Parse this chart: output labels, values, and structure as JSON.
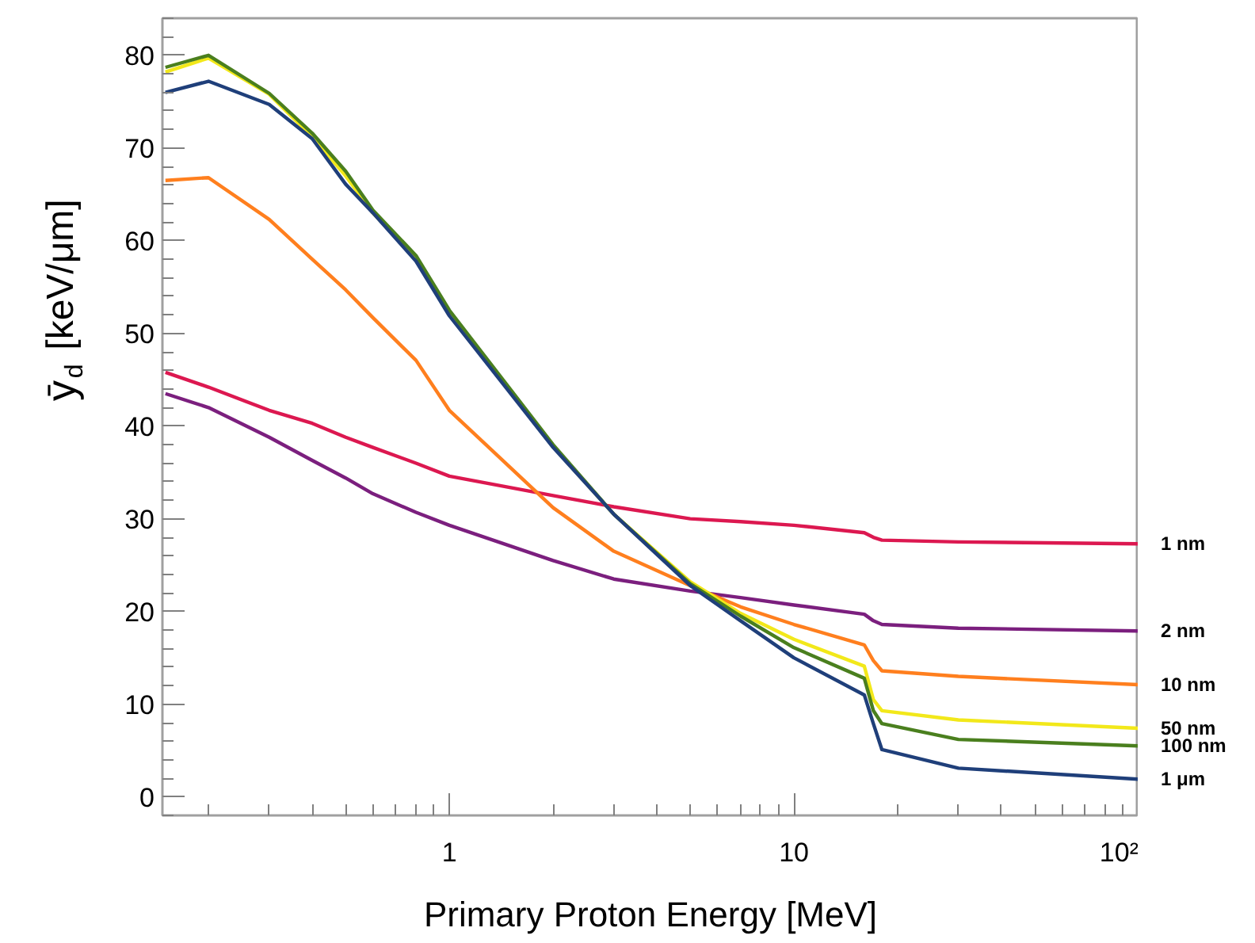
{
  "chart_data": {
    "type": "line",
    "xlabel": "Primary Proton Energy [MeV]",
    "ylabel": "ȳ$_{d}$ [keV/μm]",
    "log": "x",
    "x": [
      0.15,
      0.2,
      0.3,
      0.4,
      0.5,
      0.6,
      0.8,
      1,
      2,
      3,
      5,
      7,
      10,
      16,
      17,
      18,
      30,
      100
    ],
    "series": [
      {
        "name": "1 nm",
        "color": "#dc1850",
        "values": [
          45.8,
          44.2,
          41.7,
          40.3,
          38.8,
          37.7,
          36.0,
          34.6,
          32.5,
          31.3,
          30.0,
          29.7,
          29.3,
          28.5,
          28.0,
          27.7,
          27.5,
          27.3
        ]
      },
      {
        "name": "2 nm",
        "color": "#7b1f7e",
        "values": [
          43.5,
          42.0,
          38.8,
          36.3,
          34.4,
          32.7,
          30.7,
          29.3,
          25.5,
          23.5,
          22.2,
          21.5,
          20.7,
          19.7,
          19.0,
          18.6,
          18.2,
          17.9
        ]
      },
      {
        "name": "10 nm",
        "color": "#ff7f1e",
        "values": [
          66.5,
          66.8,
          62.3,
          58.0,
          54.7,
          51.7,
          47.1,
          41.7,
          31.2,
          26.5,
          22.8,
          20.5,
          18.6,
          16.4,
          14.7,
          13.6,
          13.0,
          12.1
        ]
      },
      {
        "name": "50 nm",
        "color": "#f2e81a",
        "values": [
          78.2,
          79.7,
          75.8,
          71.2,
          67.0,
          63.0,
          58.1,
          52.2,
          37.8,
          30.5,
          23.2,
          19.8,
          17.0,
          14.1,
          10.5,
          9.3,
          8.3,
          7.4
        ]
      },
      {
        "name": "100 nm",
        "color": "#4a7f1e",
        "values": [
          78.7,
          80.0,
          75.9,
          71.6,
          67.5,
          63.3,
          58.4,
          52.5,
          38.0,
          30.5,
          23.0,
          19.5,
          16.1,
          12.8,
          9.3,
          7.9,
          6.2,
          5.5
        ]
      },
      {
        "name": "1 μm",
        "color": "#1f3f7a",
        "values": [
          76.0,
          77.2,
          74.7,
          71.0,
          66.1,
          63.0,
          57.8,
          51.9,
          37.7,
          30.5,
          22.8,
          19.0,
          15.0,
          11.0,
          7.9,
          5.1,
          3.1,
          1.9
        ]
      }
    ],
    "xlim": [
      0.147,
      100
    ],
    "ylim": [
      -2,
      84
    ],
    "xticks": [
      1,
      10,
      {
        "value": 100,
        "label": "10²"
      }
    ],
    "yticks": [
      0,
      10,
      20,
      30,
      40,
      50,
      60,
      70,
      80
    ],
    "grid": false,
    "marker": "none",
    "line_style": "solid"
  }
}
